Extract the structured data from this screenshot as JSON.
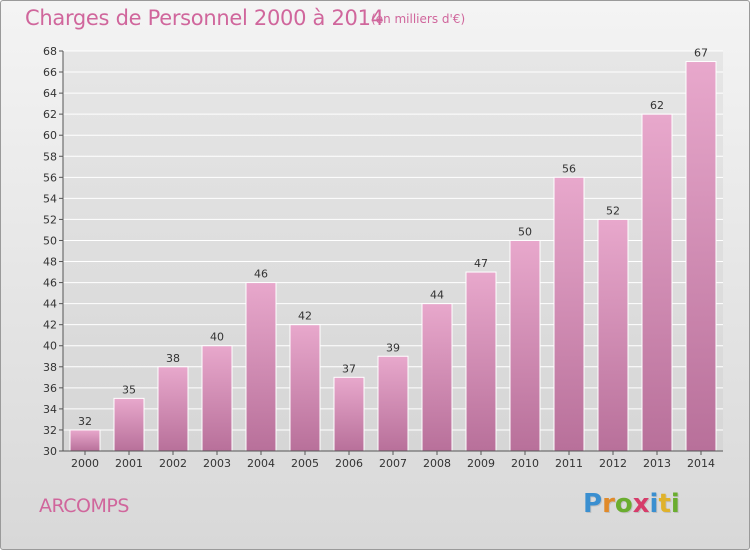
{
  "title": "Charges de Personnel 2000 à 2014",
  "subtitle": "(en milliers d'€)",
  "commune": "ARCOMPS",
  "logo": {
    "text": "Proxiti",
    "letters": [
      {
        "char": "P",
        "color": "#3a8fd0"
      },
      {
        "char": "r",
        "color": "#e08a2a"
      },
      {
        "char": "o",
        "color": "#6aad2f"
      },
      {
        "char": "x",
        "color": "#d63c6a"
      },
      {
        "char": "i",
        "color": "#3a8fd0"
      },
      {
        "char": "t",
        "color": "#e0b22a"
      },
      {
        "char": "i",
        "color": "#6aad2f"
      }
    ]
  },
  "colors": {
    "title": "#d0669c",
    "bar_top": "#e8a8cc",
    "bar_bottom": "#b8709a",
    "grid": "#ffffff"
  },
  "chart_data": {
    "type": "bar",
    "categories": [
      "2000",
      "2001",
      "2002",
      "2003",
      "2004",
      "2005",
      "2006",
      "2007",
      "2008",
      "2009",
      "2010",
      "2011",
      "2012",
      "2013",
      "2014"
    ],
    "values": [
      32,
      35,
      38,
      40,
      46,
      42,
      37,
      39,
      44,
      47,
      50,
      56,
      52,
      62,
      67
    ],
    "ylim": [
      30,
      68
    ],
    "yticks": [
      30,
      32,
      34,
      36,
      38,
      40,
      42,
      44,
      46,
      48,
      50,
      52,
      54,
      56,
      58,
      60,
      62,
      64,
      66,
      68
    ],
    "grid": true,
    "data_labels": true
  }
}
